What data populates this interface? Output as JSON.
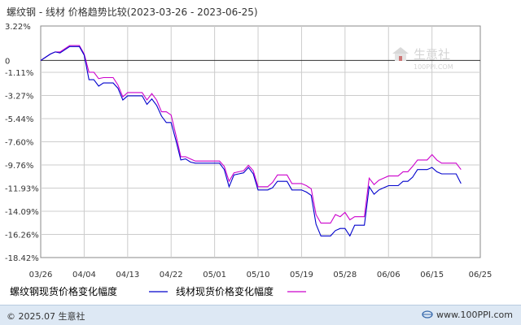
{
  "chart_data": {
    "type": "line",
    "title": "螺纹钢 - 线材 价格趋势比较(2023-03-26 - 2023-06-25)",
    "y_ticks": [
      "3.22%",
      "0",
      "-1.11%",
      "-3.27%",
      "-5.44%",
      "-7.60%",
      "-9.76%",
      "-11.93%",
      "-14.09%",
      "-16.26%",
      "-18.42%"
    ],
    "y_tick_values": [
      3.22,
      0,
      -1.11,
      -3.27,
      -5.44,
      -7.6,
      -9.76,
      -11.93,
      -14.09,
      -16.26,
      -18.42
    ],
    "ylim": [
      -18.42,
      3.22
    ],
    "x_ticks": [
      "03/26",
      "04/04",
      "04/13",
      "04/22",
      "05/01",
      "05/10",
      "05/19",
      "05/28",
      "06/06",
      "06/15",
      "06/25"
    ],
    "x_start": "2023-03-26",
    "x_end": "2023-06-25",
    "grid": true,
    "legend_position": "bottom",
    "series": [
      {
        "name": "螺纹钢现货价格变化幅度",
        "color": "#0000cc",
        "points": [
          [
            "2023-03-26",
            0.0
          ],
          [
            "2023-03-27",
            0.3
          ],
          [
            "2023-03-28",
            0.6
          ],
          [
            "2023-03-29",
            0.8
          ],
          [
            "2023-03-30",
            0.7
          ],
          [
            "2023-03-31",
            1.0
          ],
          [
            "2023-04-01",
            1.3
          ],
          [
            "2023-04-02",
            1.3
          ],
          [
            "2023-04-03",
            1.3
          ],
          [
            "2023-04-04",
            0.5
          ],
          [
            "2023-04-05",
            -1.8
          ],
          [
            "2023-04-06",
            -1.8
          ],
          [
            "2023-04-07",
            -2.4
          ],
          [
            "2023-04-08",
            -2.1
          ],
          [
            "2023-04-09",
            -2.1
          ],
          [
            "2023-04-10",
            -2.1
          ],
          [
            "2023-04-11",
            -2.6
          ],
          [
            "2023-04-12",
            -3.7
          ],
          [
            "2023-04-13",
            -3.3
          ],
          [
            "2023-04-14",
            -3.3
          ],
          [
            "2023-04-15",
            -3.3
          ],
          [
            "2023-04-16",
            -3.3
          ],
          [
            "2023-04-17",
            -4.1
          ],
          [
            "2023-04-18",
            -3.6
          ],
          [
            "2023-04-19",
            -4.2
          ],
          [
            "2023-04-20",
            -5.2
          ],
          [
            "2023-04-21",
            -5.8
          ],
          [
            "2023-04-22",
            -5.8
          ],
          [
            "2023-04-23",
            -7.5
          ],
          [
            "2023-04-24",
            -9.3
          ],
          [
            "2023-04-25",
            -9.2
          ],
          [
            "2023-04-26",
            -9.5
          ],
          [
            "2023-04-27",
            -9.6
          ],
          [
            "2023-04-28",
            -9.6
          ],
          [
            "2023-04-29",
            -9.6
          ],
          [
            "2023-04-30",
            -9.6
          ],
          [
            "2023-05-01",
            -9.6
          ],
          [
            "2023-05-02",
            -9.6
          ],
          [
            "2023-05-03",
            -10.2
          ],
          [
            "2023-05-04",
            -11.8
          ],
          [
            "2023-05-05",
            -10.7
          ],
          [
            "2023-05-06",
            -10.6
          ],
          [
            "2023-05-07",
            -10.5
          ],
          [
            "2023-05-08",
            -10.0
          ],
          [
            "2023-05-09",
            -10.6
          ],
          [
            "2023-05-10",
            -12.1
          ],
          [
            "2023-05-11",
            -12.1
          ],
          [
            "2023-05-12",
            -12.1
          ],
          [
            "2023-05-13",
            -11.9
          ],
          [
            "2023-05-14",
            -11.3
          ],
          [
            "2023-05-15",
            -11.3
          ],
          [
            "2023-05-16",
            -11.3
          ],
          [
            "2023-05-17",
            -12.1
          ],
          [
            "2023-05-18",
            -12.1
          ],
          [
            "2023-05-19",
            -12.1
          ],
          [
            "2023-05-20",
            -12.3
          ],
          [
            "2023-05-21",
            -12.6
          ],
          [
            "2023-05-22",
            -15.3
          ],
          [
            "2023-05-23",
            -16.4
          ],
          [
            "2023-05-24",
            -16.4
          ],
          [
            "2023-05-25",
            -16.4
          ],
          [
            "2023-05-26",
            -15.9
          ],
          [
            "2023-05-27",
            -15.7
          ],
          [
            "2023-05-28",
            -15.7
          ],
          [
            "2023-05-29",
            -16.4
          ],
          [
            "2023-05-30",
            -15.4
          ],
          [
            "2023-05-31",
            -15.4
          ],
          [
            "2023-06-01",
            -15.4
          ],
          [
            "2023-06-02",
            -11.8
          ],
          [
            "2023-06-03",
            -12.5
          ],
          [
            "2023-06-04",
            -12.1
          ],
          [
            "2023-06-05",
            -11.9
          ],
          [
            "2023-06-06",
            -11.7
          ],
          [
            "2023-06-07",
            -11.7
          ],
          [
            "2023-06-08",
            -11.7
          ],
          [
            "2023-06-09",
            -11.3
          ],
          [
            "2023-06-10",
            -11.3
          ],
          [
            "2023-06-11",
            -10.9
          ],
          [
            "2023-06-12",
            -10.2
          ],
          [
            "2023-06-13",
            -10.2
          ],
          [
            "2023-06-14",
            -10.2
          ],
          [
            "2023-06-15",
            -10.0
          ],
          [
            "2023-06-16",
            -10.4
          ],
          [
            "2023-06-17",
            -10.6
          ],
          [
            "2023-06-18",
            -10.6
          ],
          [
            "2023-06-19",
            -10.6
          ],
          [
            "2023-06-20",
            -10.6
          ],
          [
            "2023-06-21",
            -11.5
          ]
        ]
      },
      {
        "name": "线材现货价格变化幅度",
        "color": "#cc00cc",
        "points": [
          [
            "2023-03-26",
            0.0
          ],
          [
            "2023-03-27",
            0.3
          ],
          [
            "2023-03-28",
            0.6
          ],
          [
            "2023-03-29",
            0.8
          ],
          [
            "2023-03-30",
            0.8
          ],
          [
            "2023-03-31",
            1.1
          ],
          [
            "2023-04-01",
            1.4
          ],
          [
            "2023-04-02",
            1.4
          ],
          [
            "2023-04-03",
            1.4
          ],
          [
            "2023-04-04",
            0.6
          ],
          [
            "2023-04-05",
            -1.1
          ],
          [
            "2023-04-06",
            -1.1
          ],
          [
            "2023-04-07",
            -1.7
          ],
          [
            "2023-04-08",
            -1.6
          ],
          [
            "2023-04-09",
            -1.6
          ],
          [
            "2023-04-10",
            -1.6
          ],
          [
            "2023-04-11",
            -2.3
          ],
          [
            "2023-04-12",
            -3.4
          ],
          [
            "2023-04-13",
            -3.0
          ],
          [
            "2023-04-14",
            -3.0
          ],
          [
            "2023-04-15",
            -3.0
          ],
          [
            "2023-04-16",
            -3.0
          ],
          [
            "2023-04-17",
            -3.7
          ],
          [
            "2023-04-18",
            -3.1
          ],
          [
            "2023-04-19",
            -3.7
          ],
          [
            "2023-04-20",
            -4.8
          ],
          [
            "2023-04-21",
            -4.8
          ],
          [
            "2023-04-22",
            -5.1
          ],
          [
            "2023-04-23",
            -7.0
          ],
          [
            "2023-04-24",
            -9.0
          ],
          [
            "2023-04-25",
            -9.0
          ],
          [
            "2023-04-26",
            -9.2
          ],
          [
            "2023-04-27",
            -9.4
          ],
          [
            "2023-04-28",
            -9.4
          ],
          [
            "2023-04-29",
            -9.4
          ],
          [
            "2023-04-30",
            -9.4
          ],
          [
            "2023-05-01",
            -9.4
          ],
          [
            "2023-05-02",
            -9.4
          ],
          [
            "2023-05-03",
            -9.9
          ],
          [
            "2023-05-04",
            -11.3
          ],
          [
            "2023-05-05",
            -10.5
          ],
          [
            "2023-05-06",
            -10.4
          ],
          [
            "2023-05-07",
            -10.3
          ],
          [
            "2023-05-08",
            -9.8
          ],
          [
            "2023-05-09",
            -10.3
          ],
          [
            "2023-05-10",
            -11.8
          ],
          [
            "2023-05-11",
            -11.8
          ],
          [
            "2023-05-12",
            -11.8
          ],
          [
            "2023-05-13",
            -11.4
          ],
          [
            "2023-05-14",
            -10.7
          ],
          [
            "2023-05-15",
            -10.7
          ],
          [
            "2023-05-16",
            -10.7
          ],
          [
            "2023-05-17",
            -11.5
          ],
          [
            "2023-05-18",
            -11.5
          ],
          [
            "2023-05-19",
            -11.5
          ],
          [
            "2023-05-20",
            -11.7
          ],
          [
            "2023-05-21",
            -12.0
          ],
          [
            "2023-05-22",
            -14.4
          ],
          [
            "2023-05-23",
            -15.2
          ],
          [
            "2023-05-24",
            -15.2
          ],
          [
            "2023-05-25",
            -15.2
          ],
          [
            "2023-05-26",
            -14.4
          ],
          [
            "2023-05-27",
            -14.6
          ],
          [
            "2023-05-28",
            -14.2
          ],
          [
            "2023-05-29",
            -14.9
          ],
          [
            "2023-05-30",
            -14.6
          ],
          [
            "2023-05-31",
            -14.6
          ],
          [
            "2023-06-01",
            -14.6
          ],
          [
            "2023-06-02",
            -11.0
          ],
          [
            "2023-06-03",
            -11.6
          ],
          [
            "2023-06-04",
            -11.2
          ],
          [
            "2023-06-05",
            -11.0
          ],
          [
            "2023-06-06",
            -10.8
          ],
          [
            "2023-06-07",
            -10.8
          ],
          [
            "2023-06-08",
            -10.8
          ],
          [
            "2023-06-09",
            -10.4
          ],
          [
            "2023-06-10",
            -10.4
          ],
          [
            "2023-06-11",
            -9.9
          ],
          [
            "2023-06-12",
            -9.3
          ],
          [
            "2023-06-13",
            -9.3
          ],
          [
            "2023-06-14",
            -9.3
          ],
          [
            "2023-06-15",
            -8.8
          ],
          [
            "2023-06-16",
            -9.3
          ],
          [
            "2023-06-17",
            -9.6
          ],
          [
            "2023-06-18",
            -9.6
          ],
          [
            "2023-06-19",
            -9.6
          ],
          [
            "2023-06-20",
            -9.6
          ],
          [
            "2023-06-21",
            -10.2
          ]
        ]
      }
    ]
  },
  "watermark": {
    "name": "生意社",
    "url": "100PPI.COM"
  },
  "footer": {
    "left": "© 2025.07 生意社",
    "right": "www.100PPI.com"
  },
  "colors": {
    "grid": "#cccccc",
    "axis": "#888888",
    "footer_bg": "#dde8f4",
    "zero_line": "#333333"
  }
}
